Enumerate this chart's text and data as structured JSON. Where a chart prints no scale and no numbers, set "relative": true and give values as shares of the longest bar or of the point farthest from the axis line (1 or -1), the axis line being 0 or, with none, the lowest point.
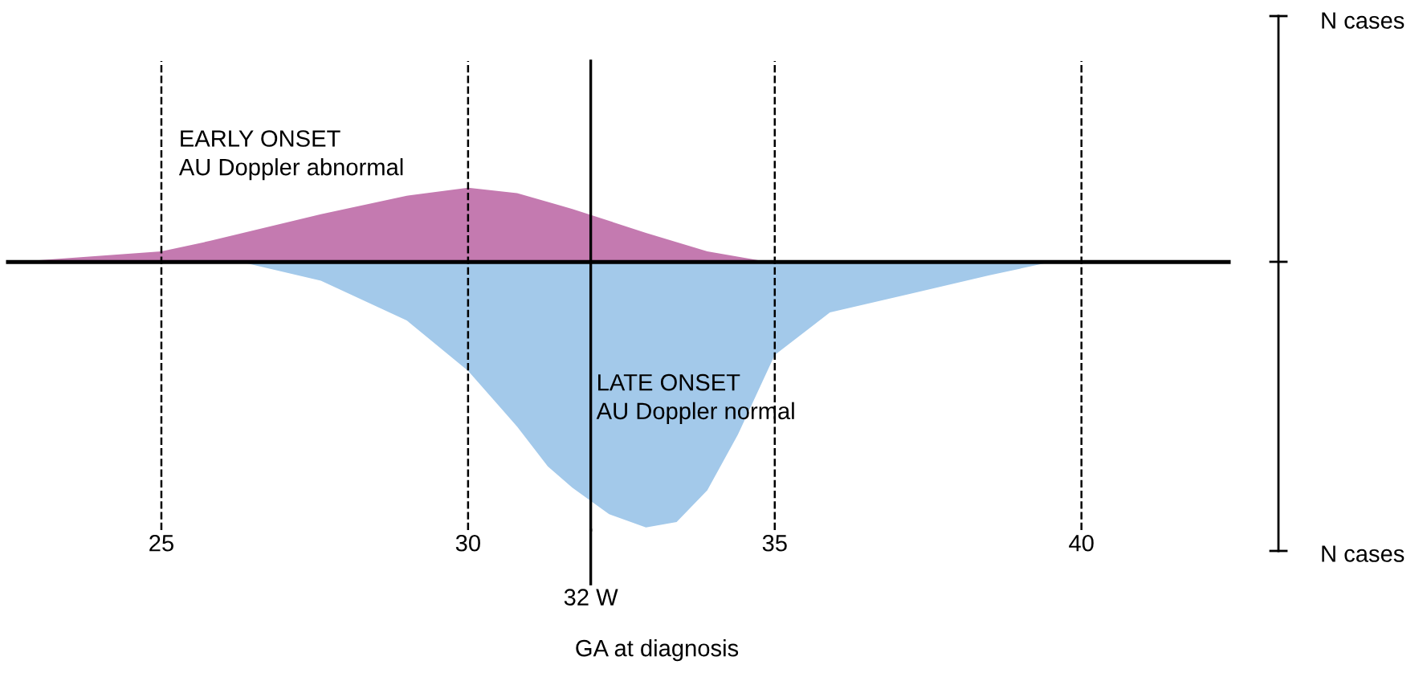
{
  "chart_data": {
    "type": "area",
    "relative": true,
    "xlabel": "GA at diagnosis",
    "xlim": [
      22.5,
      42.4
    ],
    "xticks": [
      25,
      30,
      35,
      40
    ],
    "grid": "x",
    "line_style": "dashed",
    "series": [
      {
        "name": "EARLY ONSET\nAU Doppler abnormal",
        "color": "#c47ab0",
        "x": [
          22.6,
          25,
          25.8,
          27.6,
          29,
          30,
          30.8,
          31.7,
          32.9,
          33.9,
          34.9
        ],
        "values": [
          0,
          0.04,
          0.08,
          0.18,
          0.25,
          0.28,
          0.26,
          0.2,
          0.11,
          0.04,
          0
        ]
      },
      {
        "name": "LATE ONSET\nAU Doppler normal",
        "color": "#a3c9ea",
        "x": [
          26.3,
          27.6,
          29,
          30,
          30.8,
          31.3,
          31.7,
          32.3,
          32.9,
          33.4,
          33.9,
          34.4,
          35,
          35.9,
          37.2,
          38.5,
          39.5
        ],
        "values": [
          0,
          -0.07,
          -0.22,
          -0.41,
          -0.62,
          -0.77,
          -0.85,
          -0.95,
          -1,
          -0.98,
          -0.86,
          -0.65,
          -0.35,
          -0.19,
          -0.12,
          -0.05,
          0
        ]
      }
    ],
    "ref_lines": [
      {
        "axis": "x",
        "value": 32,
        "label": "32 W"
      }
    ],
    "annotations": [
      "N cases",
      "N cases"
    ]
  }
}
